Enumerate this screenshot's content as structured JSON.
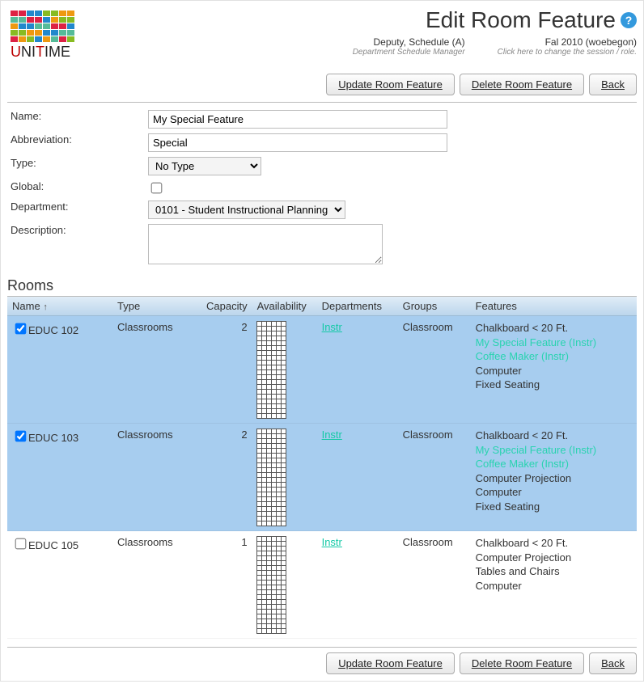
{
  "page": {
    "title": "Edit Room Feature",
    "help_label": "?"
  },
  "session": {
    "user": "Deputy, Schedule (A)",
    "user_role": "Department Schedule Manager",
    "term": "Fal 2010 (woebegon)",
    "term_hint": "Click here to change the session / role."
  },
  "buttons": {
    "update": "Update Room Feature",
    "delete": "Delete Room Feature",
    "back": "Back"
  },
  "form": {
    "name_label": "Name:",
    "name_value": "My Special Feature",
    "abbr_label": "Abbreviation:",
    "abbr_value": "Special",
    "type_label": "Type:",
    "type_value": "No Type",
    "global_label": "Global:",
    "global_checked": false,
    "dept_label": "Department:",
    "dept_value": "0101 - Student Instructional Planning",
    "desc_label": "Description:",
    "desc_value": ""
  },
  "rooms_section_title": "Rooms",
  "rooms_headers": {
    "name": "Name",
    "type": "Type",
    "capacity": "Capacity",
    "availability": "Availability",
    "departments": "Departments",
    "groups": "Groups",
    "features": "Features"
  },
  "rooms": [
    {
      "checked": true,
      "name": "EDUC 102",
      "type": "Classrooms",
      "capacity": "2",
      "dept": "Instr",
      "group": "Classroom",
      "features": [
        {
          "text": "Chalkboard < 20 Ft.",
          "special": false
        },
        {
          "text": "My Special Feature (Instr)",
          "special": true
        },
        {
          "text": "Coffee Maker (Instr)",
          "special": true
        },
        {
          "text": "Computer",
          "special": false
        },
        {
          "text": "Fixed Seating",
          "special": false
        }
      ]
    },
    {
      "checked": true,
      "name": "EDUC 103",
      "type": "Classrooms",
      "capacity": "2",
      "dept": "Instr",
      "group": "Classroom",
      "features": [
        {
          "text": "Chalkboard < 20 Ft.",
          "special": false
        },
        {
          "text": "My Special Feature (Instr)",
          "special": true
        },
        {
          "text": "Coffee Maker (Instr)",
          "special": true
        },
        {
          "text": "Computer Projection",
          "special": false
        },
        {
          "text": "Computer",
          "special": false
        },
        {
          "text": "Fixed Seating",
          "special": false
        }
      ]
    },
    {
      "checked": false,
      "name": "EDUC 105",
      "type": "Classrooms",
      "capacity": "1",
      "dept": "Instr",
      "group": "Classroom",
      "features": [
        {
          "text": "Chalkboard < 20 Ft.",
          "special": false
        },
        {
          "text": "Computer Projection",
          "special": false
        },
        {
          "text": "Tables and Chairs",
          "special": false
        },
        {
          "text": "Computer",
          "special": false
        }
      ]
    }
  ],
  "logo_colors": [
    "#d24",
    "#d24",
    "#28c",
    "#28c",
    "#8b2",
    "#8b2",
    "#e91",
    "#e91",
    "#5b9",
    "#5b9",
    "#d24",
    "#d24",
    "#28c",
    "#e91",
    "#8b2",
    "#8b2",
    "#e91",
    "#28c",
    "#28c",
    "#5b9",
    "#5b9",
    "#d24",
    "#d24",
    "#28c",
    "#8b2",
    "#8b2",
    "#e91",
    "#e91",
    "#28c",
    "#28c",
    "#5b9",
    "#5b9",
    "#d24",
    "#e91",
    "#8b2",
    "#28c",
    "#e91",
    "#5b9",
    "#d24",
    "#8b2"
  ],
  "avail_rows": 20,
  "avail_cols": 6
}
